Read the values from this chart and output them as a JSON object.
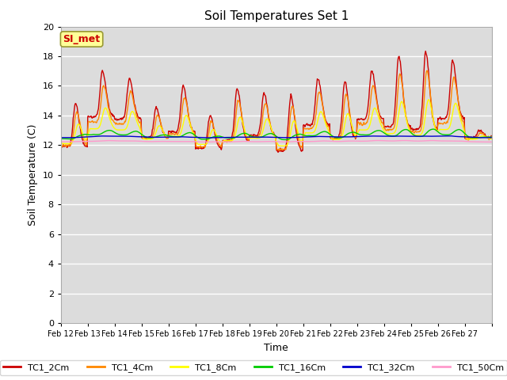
{
  "title": "Soil Temperatures Set 1",
  "xlabel": "Time",
  "ylabel": "Soil Temperature (C)",
  "ylim": [
    0,
    20
  ],
  "yticks": [
    0,
    2,
    4,
    6,
    8,
    10,
    12,
    14,
    16,
    18,
    20
  ],
  "bg_color": "#dcdcdc",
  "fig_color": "#ffffff",
  "annotation_text": "SI_met",
  "annotation_color": "#cc0000",
  "annotation_bg": "#ffff99",
  "annotation_border": "#999933",
  "series_colors": {
    "TC1_2Cm": "#cc0000",
    "TC1_4Cm": "#ff8800",
    "TC1_8Cm": "#ffff00",
    "TC1_16Cm": "#00cc00",
    "TC1_32Cm": "#0000cc",
    "TC1_50Cm": "#ff99cc"
  },
  "x_labels": [
    "Feb 12",
    "Feb 13",
    "Feb 14",
    "Feb 15",
    "Feb 16",
    "Feb 17",
    "Feb 18",
    "Feb 19",
    "Feb 20",
    "Feb 21",
    "Feb 22",
    "Feb 23",
    "Feb 24",
    "Feb 25",
    "Feb 26",
    "Feb 27"
  ],
  "n_days": 16,
  "pts_per_day": 48
}
